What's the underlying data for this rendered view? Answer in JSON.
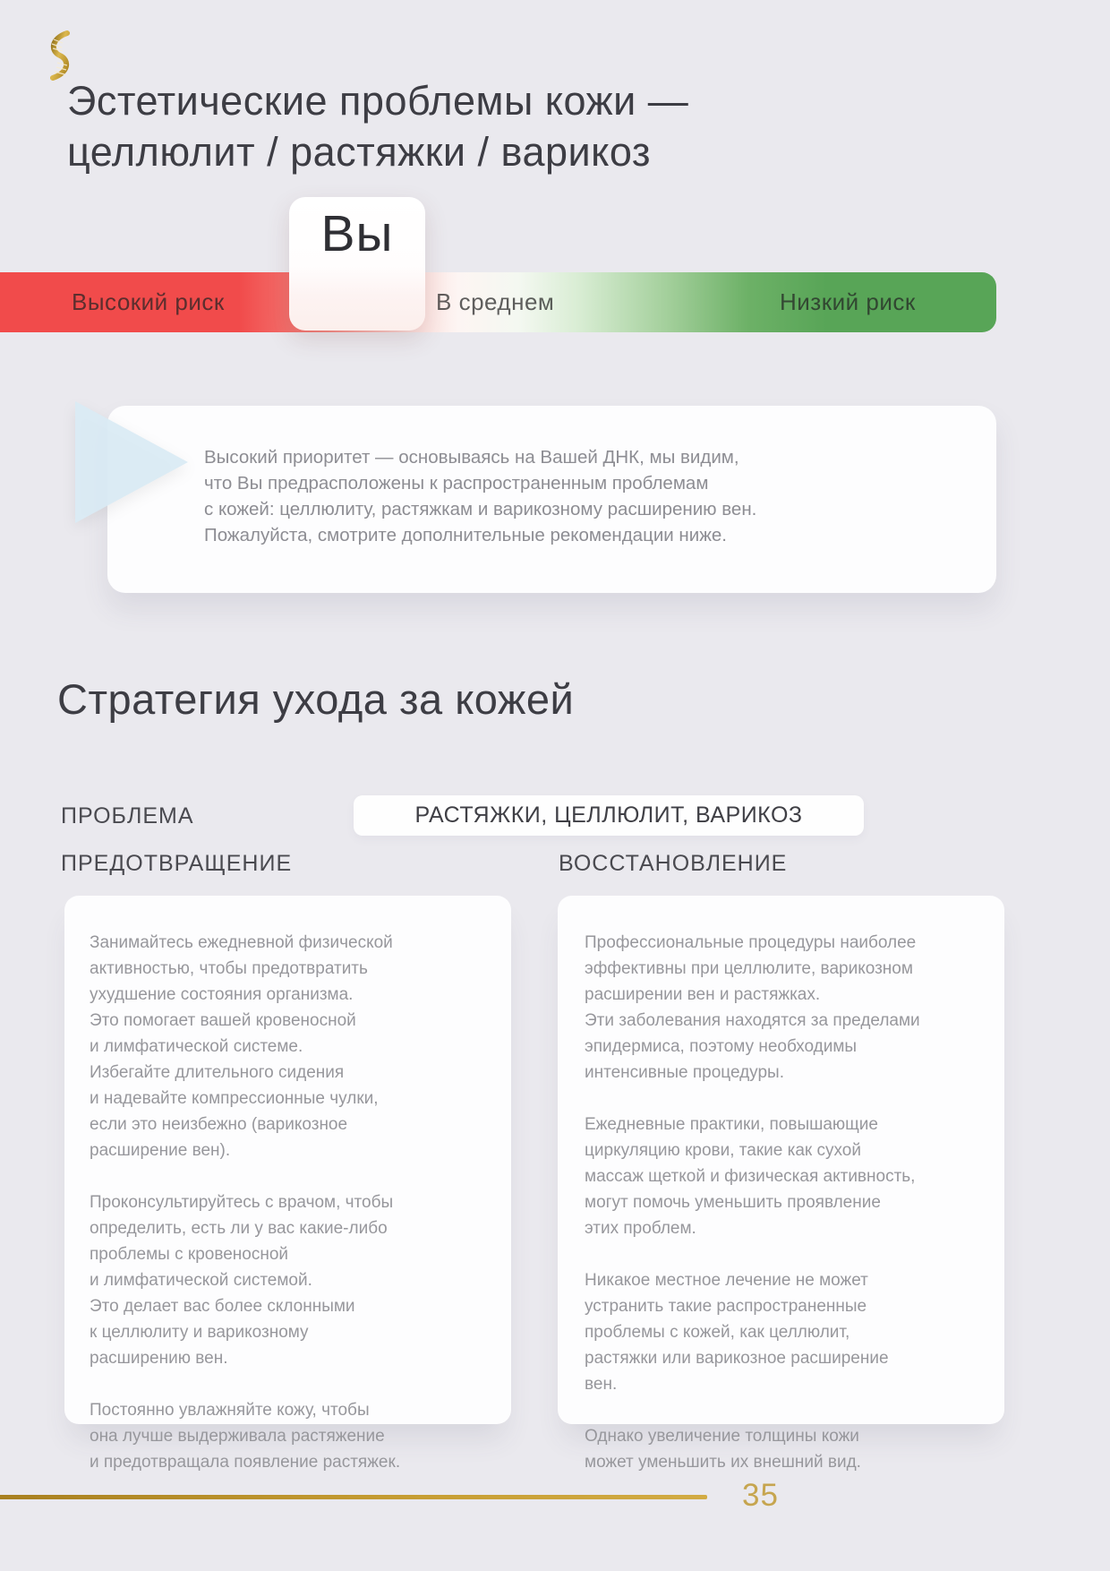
{
  "page": {
    "background": "#eae9ee",
    "title": "Эстетические проблемы кожи —\nцеллюлит / растяжки / варикоз"
  },
  "header": {
    "logo_icon": "dna-helix-icon",
    "logo_color": "#c19a2e"
  },
  "risk_scale": {
    "marker_label": "Вы",
    "labels": {
      "high": "Высокий риск",
      "mid": "В среднем",
      "low": "Низкий риск"
    },
    "colors": {
      "high_red": "#f14b4b",
      "low_green": "#58a557"
    }
  },
  "callout": {
    "icon": "triangle-pointer-icon",
    "icon_color": "#d9eaf4",
    "text": "Высокий приоритет — основываясь на Вашей ДНК, мы видим,\nчто Вы предрасположены к распространенным проблемам\nс кожей: целлюлиту, растяжкам и варикозному расширению вен.\nПожалуйста, смотрите дополнительные рекомендации ниже."
  },
  "strategy": {
    "section_title": "Стратегия ухода за кожей",
    "problem_label": "ПРОБЛЕМА",
    "problem_value": "РАСТЯЖКИ, ЦЕЛЛЮЛИТ, ВАРИКОЗ",
    "prevention": {
      "label": "ПРЕДОТВРАЩЕНИЕ",
      "paragraphs": [
        "Занимайтесь ежедневной физической\nактивностью, чтобы предотвратить\nухудшение состояния организма.\nЭто помогает вашей кровеносной\nи лимфатической системе.\nИзбегайте длительного сидения\nи надевайте компрессионные чулки,\nесли это неизбежно (варикозное\nрасширение вен).",
        "Проконсультируйтесь с врачом, чтобы\nопределить, есть ли у вас какие-либо\nпроблемы с кровеносной\nи лимфатической системой.\nЭто делает вас более склонными\nк целлюлиту и варикозному\nрасширению вен.",
        "Постоянно увлажняйте кожу, чтобы\nона лучше выдерживала растяжение\nи предотвращала появление растяжек."
      ]
    },
    "recovery": {
      "label": "ВОССТАНОВЛЕНИЕ",
      "paragraphs": [
        "Профессиональные процедуры наиболее\nэффективны при целлюлите, варикозном\nрасширении вен и растяжках.\nЭти заболевания находятся за пределами\nэпидермиса, поэтому необходимы\nинтенсивные процедуры.",
        "Ежедневные практики, повышающие\nциркуляцию крови, такие как сухой\nмассаж щеткой и физическая активность,\nмогут помочь уменьшить проявление\nэтих проблем.",
        "Никакое местное лечение не может\nустранить такие распространенные\nпроблемы с кожей, как целлюлит,\nрастяжки или варикозное расширение\nвен.",
        "Однако увеличение толщины кожи\nможет уменьшить их внешний вид."
      ]
    }
  },
  "footer": {
    "page_number": "35",
    "accent_gold": "#c79e33"
  }
}
